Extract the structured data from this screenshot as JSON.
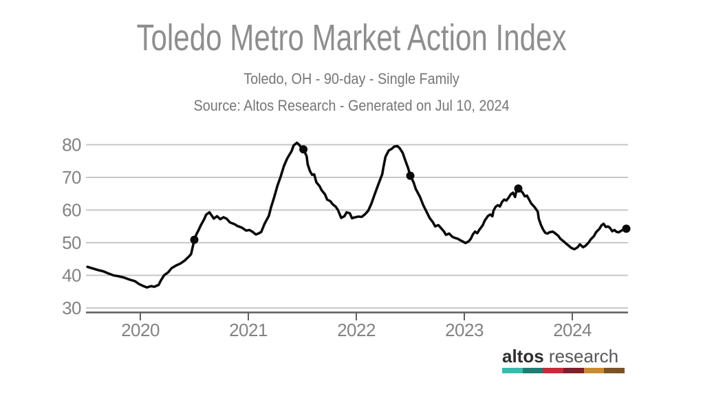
{
  "header": {
    "title": "Toledo Metro Market Action Index",
    "subtitle": "Toledo, OH - 90-day - Single Family",
    "source_line": "Source: Altos Research - Generated on Jul 10, 2024"
  },
  "chart_data": {
    "type": "line",
    "title": "Toledo Metro Market Action Index",
    "xlabel": "",
    "ylabel": "",
    "xlim": [
      2019.51,
      2024.55
    ],
    "ylim": [
      30,
      84
    ],
    "x_ticks": [
      2020,
      2021,
      2022,
      2023,
      2024
    ],
    "y_ticks": [
      30,
      40,
      50,
      60,
      70,
      80
    ],
    "grid": "horizontal",
    "legend": "none",
    "line_color": "#0a0a0a",
    "marker_color": "#0a0a0a",
    "series": [
      {
        "name": "Market Action Index",
        "points": [
          [
            2019.51,
            42.6
          ],
          [
            2019.56,
            42.1
          ],
          [
            2019.61,
            41.6
          ],
          [
            2019.66,
            41.2
          ],
          [
            2019.71,
            40.5
          ],
          [
            2019.75,
            40.0
          ],
          [
            2019.8,
            39.7
          ],
          [
            2019.85,
            39.3
          ],
          [
            2019.9,
            38.7
          ],
          [
            2019.95,
            38.2
          ],
          [
            2019.99,
            37.3
          ],
          [
            2020.03,
            36.7
          ],
          [
            2020.06,
            36.3
          ],
          [
            2020.1,
            36.7
          ],
          [
            2020.13,
            36.5
          ],
          [
            2020.17,
            37.1
          ],
          [
            2020.19,
            38.4
          ],
          [
            2020.22,
            40.0
          ],
          [
            2020.26,
            41.0
          ],
          [
            2020.29,
            42.2
          ],
          [
            2020.33,
            43.0
          ],
          [
            2020.37,
            43.6
          ],
          [
            2020.41,
            44.5
          ],
          [
            2020.45,
            45.8
          ],
          [
            2020.47,
            46.5
          ],
          [
            2020.48,
            48.0
          ],
          [
            2020.5,
            50.9
          ],
          [
            2020.52,
            52.6
          ],
          [
            2020.54,
            53.9
          ],
          [
            2020.56,
            55.3
          ],
          [
            2020.59,
            57.1
          ],
          [
            2020.61,
            58.6
          ],
          [
            2020.64,
            59.3
          ],
          [
            2020.68,
            57.4
          ],
          [
            2020.71,
            58.1
          ],
          [
            2020.74,
            57.2
          ],
          [
            2020.77,
            57.8
          ],
          [
            2020.8,
            57.3
          ],
          [
            2020.83,
            56.2
          ],
          [
            2020.87,
            55.7
          ],
          [
            2020.9,
            55.1
          ],
          [
            2020.94,
            54.6
          ],
          [
            2020.98,
            53.7
          ],
          [
            2021.01,
            53.9
          ],
          [
            2021.04,
            53.3
          ],
          [
            2021.07,
            52.5
          ],
          [
            2021.1,
            52.9
          ],
          [
            2021.12,
            53.3
          ],
          [
            2021.15,
            55.8
          ],
          [
            2021.19,
            58.2
          ],
          [
            2021.21,
            60.8
          ],
          [
            2021.24,
            64.0
          ],
          [
            2021.27,
            67.5
          ],
          [
            2021.3,
            70.3
          ],
          [
            2021.33,
            73.5
          ],
          [
            2021.36,
            75.8
          ],
          [
            2021.4,
            78.0
          ],
          [
            2021.42,
            79.8
          ],
          [
            2021.45,
            80.6
          ],
          [
            2021.47,
            80.0
          ],
          [
            2021.49,
            79.2
          ],
          [
            2021.51,
            78.6
          ],
          [
            2021.54,
            76.5
          ],
          [
            2021.55,
            74.0
          ],
          [
            2021.57,
            72.0
          ],
          [
            2021.59,
            70.8
          ],
          [
            2021.61,
            70.9
          ],
          [
            2021.63,
            68.5
          ],
          [
            2021.66,
            67.3
          ],
          [
            2021.68,
            66.0
          ],
          [
            2021.71,
            64.8
          ],
          [
            2021.73,
            63.2
          ],
          [
            2021.76,
            62.7
          ],
          [
            2021.78,
            61.8
          ],
          [
            2021.81,
            61.0
          ],
          [
            2021.83,
            60.0
          ],
          [
            2021.86,
            57.6
          ],
          [
            2021.89,
            58.1
          ],
          [
            2021.91,
            59.3
          ],
          [
            2021.94,
            59.0
          ],
          [
            2021.96,
            57.5
          ],
          [
            2021.99,
            57.8
          ],
          [
            2022.02,
            58.0
          ],
          [
            2022.05,
            57.9
          ],
          [
            2022.08,
            58.7
          ],
          [
            2022.11,
            59.8
          ],
          [
            2022.14,
            62.0
          ],
          [
            2022.17,
            64.8
          ],
          [
            2022.2,
            67.5
          ],
          [
            2022.24,
            71.0
          ],
          [
            2022.25,
            73.0
          ],
          [
            2022.27,
            76.3
          ],
          [
            2022.3,
            78.2
          ],
          [
            2022.33,
            78.8
          ],
          [
            2022.35,
            79.4
          ],
          [
            2022.38,
            79.6
          ],
          [
            2022.4,
            79.0
          ],
          [
            2022.43,
            77.5
          ],
          [
            2022.45,
            75.5
          ],
          [
            2022.48,
            72.8
          ],
          [
            2022.5,
            70.5
          ],
          [
            2022.53,
            68.5
          ],
          [
            2022.55,
            66.5
          ],
          [
            2022.59,
            64.0
          ],
          [
            2022.62,
            61.5
          ],
          [
            2022.65,
            59.5
          ],
          [
            2022.68,
            57.5
          ],
          [
            2022.71,
            56.2
          ],
          [
            2022.73,
            55.0
          ],
          [
            2022.76,
            55.4
          ],
          [
            2022.78,
            54.6
          ],
          [
            2022.81,
            53.5
          ],
          [
            2022.83,
            52.4
          ],
          [
            2022.86,
            52.8
          ],
          [
            2022.89,
            51.8
          ],
          [
            2022.91,
            51.5
          ],
          [
            2022.94,
            51.2
          ],
          [
            2022.96,
            50.8
          ],
          [
            2022.99,
            50.3
          ],
          [
            2023.01,
            49.9
          ],
          [
            2023.04,
            50.4
          ],
          [
            2023.06,
            51.2
          ],
          [
            2023.08,
            52.6
          ],
          [
            2023.1,
            53.4
          ],
          [
            2023.12,
            52.9
          ],
          [
            2023.14,
            54.0
          ],
          [
            2023.17,
            55.3
          ],
          [
            2023.19,
            56.8
          ],
          [
            2023.22,
            58.2
          ],
          [
            2023.24,
            58.6
          ],
          [
            2023.26,
            58.1
          ],
          [
            2023.27,
            59.8
          ],
          [
            2023.29,
            61.0
          ],
          [
            2023.31,
            61.5
          ],
          [
            2023.33,
            61.1
          ],
          [
            2023.35,
            62.5
          ],
          [
            2023.37,
            63.2
          ],
          [
            2023.39,
            62.9
          ],
          [
            2023.41,
            63.8
          ],
          [
            2023.43,
            64.8
          ],
          [
            2023.45,
            65.3
          ],
          [
            2023.47,
            64.0
          ],
          [
            2023.48,
            65.6
          ],
          [
            2023.5,
            66.6
          ],
          [
            2023.52,
            66.0
          ],
          [
            2023.54,
            65.3
          ],
          [
            2023.56,
            64.2
          ],
          [
            2023.58,
            64.4
          ],
          [
            2023.6,
            63.2
          ],
          [
            2023.62,
            62.0
          ],
          [
            2023.65,
            60.9
          ],
          [
            2023.68,
            59.5
          ],
          [
            2023.69,
            57.3
          ],
          [
            2023.71,
            55.4
          ],
          [
            2023.73,
            54.0
          ],
          [
            2023.75,
            53.0
          ],
          [
            2023.77,
            52.8
          ],
          [
            2023.79,
            53.2
          ],
          [
            2023.82,
            53.4
          ],
          [
            2023.84,
            52.9
          ],
          [
            2023.87,
            52.1
          ],
          [
            2023.89,
            51.2
          ],
          [
            2023.92,
            50.4
          ],
          [
            2023.94,
            49.8
          ],
          [
            2023.97,
            49.0
          ],
          [
            2023.99,
            48.4
          ],
          [
            2024.02,
            48.0
          ],
          [
            2024.05,
            48.6
          ],
          [
            2024.07,
            49.5
          ],
          [
            2024.1,
            48.6
          ],
          [
            2024.12,
            49.0
          ],
          [
            2024.15,
            50.0
          ],
          [
            2024.17,
            51.0
          ],
          [
            2024.2,
            52.0
          ],
          [
            2024.22,
            53.2
          ],
          [
            2024.25,
            54.2
          ],
          [
            2024.27,
            55.3
          ],
          [
            2024.29,
            55.8
          ],
          [
            2024.31,
            54.8
          ],
          [
            2024.33,
            55.0
          ],
          [
            2024.35,
            54.5
          ],
          [
            2024.37,
            53.5
          ],
          [
            2024.39,
            53.9
          ],
          [
            2024.41,
            53.3
          ],
          [
            2024.43,
            53.2
          ],
          [
            2024.45,
            53.6
          ],
          [
            2024.47,
            54.0
          ],
          [
            2024.48,
            54.2
          ],
          [
            2024.5,
            54.3
          ]
        ]
      }
    ],
    "markers": [
      [
        2020.5,
        50.9
      ],
      [
        2021.51,
        78.6
      ],
      [
        2022.5,
        70.5
      ],
      [
        2023.5,
        66.6
      ],
      [
        2024.5,
        54.3
      ]
    ]
  },
  "footer": {
    "logo_text_bold": "altos",
    "logo_text_light": "research",
    "logo_bar_colors": [
      "#35bcae",
      "#1e7d74",
      "#c52b38",
      "#7d212c",
      "#ca8c33",
      "#7b5426"
    ]
  }
}
